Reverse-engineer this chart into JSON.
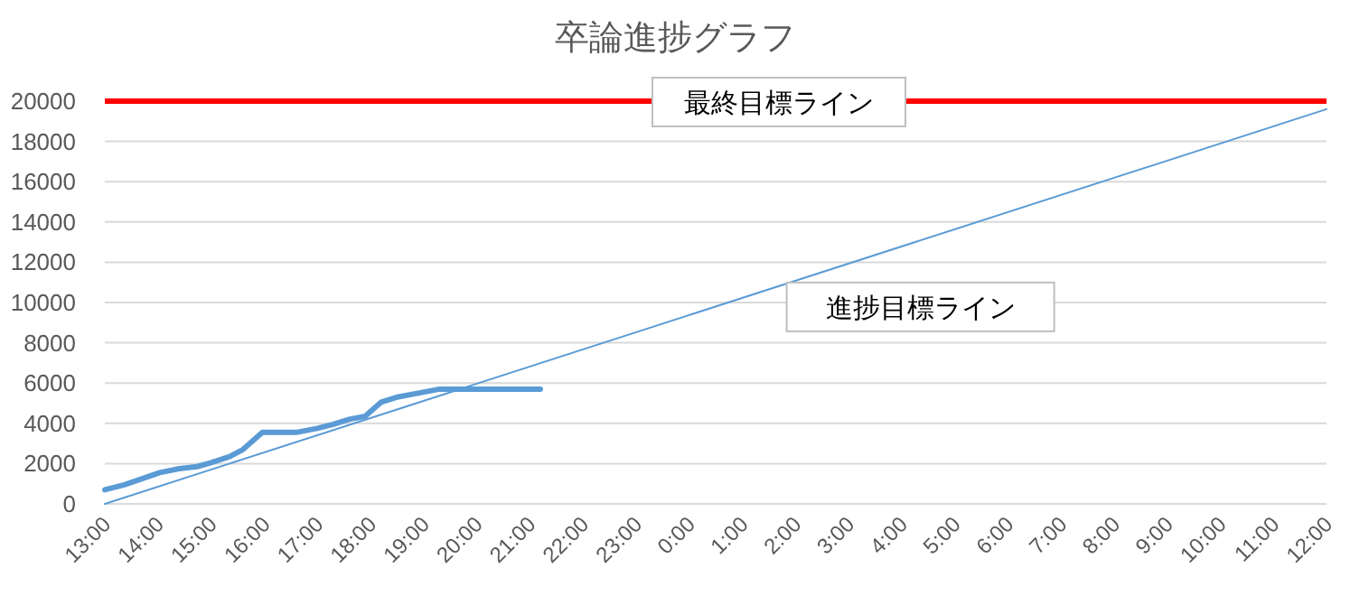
{
  "chart_data": {
    "type": "line",
    "title": "卒論進捗グラフ",
    "xlim": [
      "2000-01-01T13:00",
      "2000-01-02T12:00"
    ],
    "xticks": [
      {
        "value": "2000-01-01T13:00",
        "label": "13:00"
      },
      {
        "value": "2000-01-01T14:00",
        "label": "14:00"
      },
      {
        "value": "2000-01-01T15:00",
        "label": "15:00"
      },
      {
        "value": "2000-01-01T16:00",
        "label": "16:00"
      },
      {
        "value": "2000-01-01T17:00",
        "label": "17:00"
      },
      {
        "value": "2000-01-01T18:00",
        "label": "18:00"
      },
      {
        "value": "2000-01-01T19:00",
        "label": "19:00"
      },
      {
        "value": "2000-01-01T20:00",
        "label": "20:00"
      },
      {
        "value": "2000-01-01T21:00",
        "label": "21:00"
      },
      {
        "value": "2000-01-01T22:00",
        "label": "22:00"
      },
      {
        "value": "2000-01-01T23:00",
        "label": "23:00"
      },
      {
        "value": "2000-01-02T00:00",
        "label": "0:00"
      },
      {
        "value": "2000-01-02T01:00",
        "label": "1:00"
      },
      {
        "value": "2000-01-02T02:00",
        "label": "2:00"
      },
      {
        "value": "2000-01-02T03:00",
        "label": "3:00"
      },
      {
        "value": "2000-01-02T04:00",
        "label": "4:00"
      },
      {
        "value": "2000-01-02T05:00",
        "label": "5:00"
      },
      {
        "value": "2000-01-02T06:00",
        "label": "6:00"
      },
      {
        "value": "2000-01-02T07:00",
        "label": "7:00"
      },
      {
        "value": "2000-01-02T08:00",
        "label": "8:00"
      },
      {
        "value": "2000-01-02T09:00",
        "label": "9:00"
      },
      {
        "value": "2000-01-02T10:00",
        "label": "10:00"
      },
      {
        "value": "2000-01-02T11:00",
        "label": "11:00"
      },
      {
        "value": "2000-01-02T12:00",
        "label": "12:00"
      }
    ],
    "ylim": [
      0,
      20000
    ],
    "yticks": [
      0,
      2000,
      4000,
      6000,
      8000,
      10000,
      12000,
      14000,
      16000,
      18000,
      20000
    ],
    "grid": "y",
    "legend": false,
    "marker": "none",
    "line_style": "solid",
    "series": [
      {
        "color": "#5b9bd5",
        "x": [
          "2000-01-01T13:00",
          "2000-01-01T13:22",
          "2000-01-01T13:42",
          "2000-01-01T14:02",
          "2000-01-01T14:24",
          "2000-01-01T14:44",
          "2000-01-01T15:00",
          "2000-01-01T15:21",
          "2000-01-01T15:36",
          "2000-01-01T15:58",
          "2000-01-01T16:18",
          "2000-01-01T16:36",
          "2000-01-01T17:00",
          "2000-01-01T17:18",
          "2000-01-01T17:36",
          "2000-01-01T17:54",
          "2000-01-01T18:12",
          "2000-01-01T18:30",
          "2000-01-01T18:54",
          "2000-01-01T19:18",
          "2000-01-01T19:36",
          "2000-01-01T21:12"
        ],
        "values": [
          700,
          950,
          1250,
          1550,
          1750,
          1850,
          2050,
          2350,
          2700,
          3550,
          3550,
          3550,
          3750,
          3950,
          4200,
          4350,
          5050,
          5300,
          5500,
          5700,
          5700,
          5700
        ]
      },
      {
        "name": "進捗目標ライン",
        "color": "#5b9bd5",
        "x": [
          "2000-01-01T13:00",
          "2000-01-02T12:00"
        ],
        "values": [
          0,
          19600
        ]
      }
    ],
    "ref_lines": [
      {
        "axis": "y",
        "value": 20000,
        "label": "最終目標ライン",
        "color": "#ff0000"
      }
    ]
  }
}
